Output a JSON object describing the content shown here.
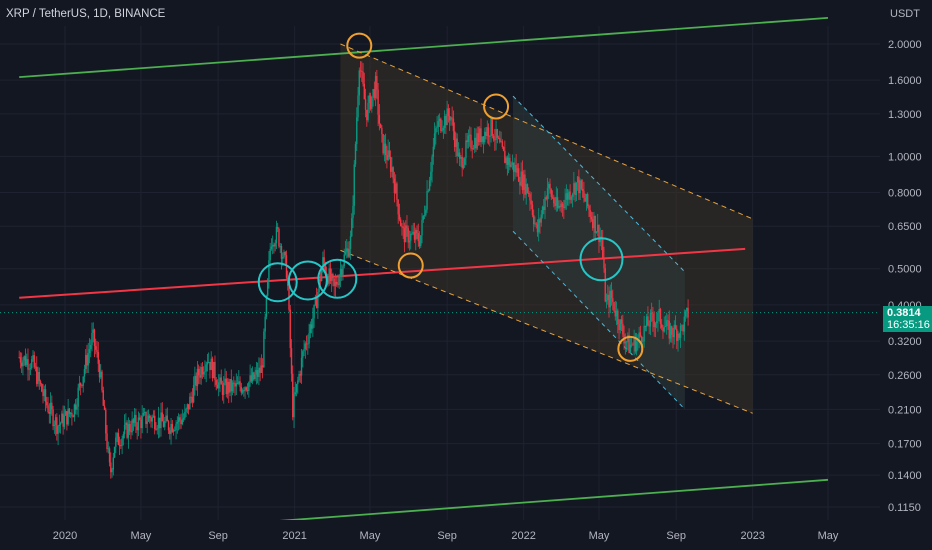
{
  "header": {
    "title": "XRP / TetherUS, 1D, BINANCE"
  },
  "axis": {
    "unit": "USDT"
  },
  "last_price": {
    "value": "0.3814",
    "countdown": "16:35:16",
    "color": "#089981"
  },
  "colors": {
    "background": "#131722",
    "green_channel": "#4caf50",
    "red_midline": "#f23645",
    "orange_circle": "#f0a030",
    "cyan_circle": "#26c6c6",
    "up_candle": "#089981",
    "down_candle": "#f23645"
  },
  "chart_data": {
    "type": "line",
    "title": "XRP / TetherUS, 1D, BINANCE",
    "scale": "log",
    "y_unit": "USDT",
    "ylim": [
      0.103,
      2.45
    ],
    "xlim": [
      "2019-10-20",
      "2023-06-10"
    ],
    "y_ticks": [
      "2.0000",
      "1.6000",
      "1.3000",
      "1.0000",
      "0.8000",
      "0.6500",
      "0.5000",
      "0.4000",
      "0.3200",
      "0.2600",
      "0.2100",
      "0.1700",
      "0.1400",
      "0.1150"
    ],
    "x_ticks": [
      {
        "label": "2020",
        "date": "2020-01-01"
      },
      {
        "label": "May",
        "date": "2020-05-01"
      },
      {
        "label": "Sep",
        "date": "2020-09-01"
      },
      {
        "label": "2021",
        "date": "2021-01-01"
      },
      {
        "label": "May",
        "date": "2021-05-01"
      },
      {
        "label": "Sep",
        "date": "2021-09-01"
      },
      {
        "label": "2022",
        "date": "2022-01-01"
      },
      {
        "label": "May",
        "date": "2022-05-01"
      },
      {
        "label": "Sep",
        "date": "2022-09-01"
      },
      {
        "label": "2023",
        "date": "2023-01-01"
      },
      {
        "label": "May",
        "date": "2023-05-01"
      }
    ],
    "series": [
      {
        "x": [
          "2019-10-20",
          "2019-11-10",
          "2019-12-01",
          "2019-12-20",
          "2020-01-15",
          "2020-02-14",
          "2020-02-25",
          "2020-03-13",
          "2020-03-20",
          "2020-04-15",
          "2020-05-15",
          "2020-06-15",
          "2020-07-10",
          "2020-07-31",
          "2020-08-15",
          "2020-09-05",
          "2020-10-01",
          "2020-10-25",
          "2020-11-10",
          "2020-11-24",
          "2020-12-05",
          "2020-12-20",
          "2020-12-29",
          "2021-01-15",
          "2021-02-01",
          "2021-02-15",
          "2021-03-05",
          "2021-03-20",
          "2021-04-01",
          "2021-04-14",
          "2021-04-25",
          "2021-05-10",
          "2021-05-19",
          "2021-06-05",
          "2021-06-22",
          "2021-07-20",
          "2021-08-15",
          "2021-09-06",
          "2021-09-21",
          "2021-10-05",
          "2021-10-20",
          "2021-11-10",
          "2021-11-30",
          "2021-12-20",
          "2022-01-10",
          "2022-01-22",
          "2022-02-08",
          "2022-02-24",
          "2022-03-15",
          "2022-03-28",
          "2022-04-15",
          "2022-05-05",
          "2022-05-12",
          "2022-05-20",
          "2022-06-10",
          "2022-06-18",
          "2022-07-01",
          "2022-07-20",
          "2022-08-05",
          "2022-08-20",
          "2022-09-08",
          "2022-09-20"
        ],
        "values": [
          0.29,
          0.28,
          0.22,
          0.19,
          0.21,
          0.33,
          0.27,
          0.14,
          0.17,
          0.19,
          0.2,
          0.19,
          0.2,
          0.26,
          0.29,
          0.24,
          0.24,
          0.25,
          0.27,
          0.6,
          0.62,
          0.49,
          0.21,
          0.3,
          0.38,
          0.52,
          0.44,
          0.53,
          0.6,
          1.8,
          1.3,
          1.55,
          1.1,
          0.93,
          0.62,
          0.6,
          1.2,
          1.3,
          0.95,
          1.08,
          1.12,
          1.2,
          1.0,
          0.92,
          0.8,
          0.62,
          0.83,
          0.72,
          0.8,
          0.85,
          0.72,
          0.6,
          0.4,
          0.42,
          0.33,
          0.31,
          0.32,
          0.36,
          0.37,
          0.34,
          0.34,
          0.38
        ]
      }
    ]
  }
}
